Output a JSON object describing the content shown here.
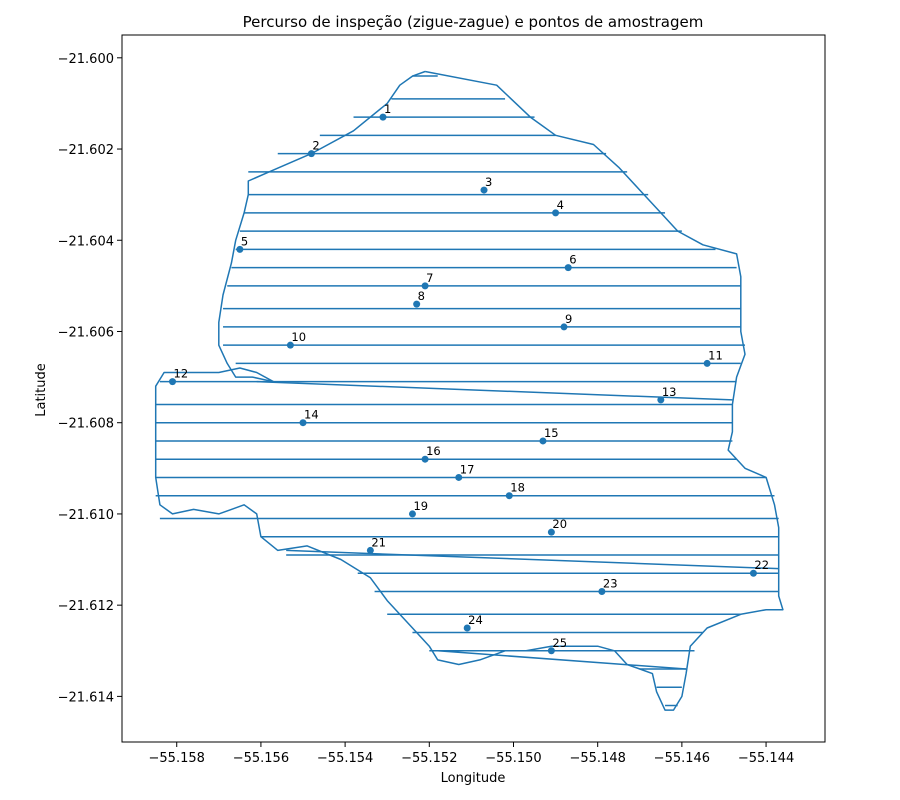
{
  "chart_data": {
    "type": "line",
    "title": "Percurso de inspeção (zigue-zague) e pontos de amostragem",
    "xlabel": "Longitude",
    "ylabel": "Latitude",
    "xlim": [
      -55.1593,
      -55.1426
    ],
    "ylim": [
      -21.615,
      -21.5995
    ],
    "grid": false,
    "line_color": "#1f77b4",
    "point_color": "#1f77b4",
    "x_ticks": [
      {
        "value": -55.158,
        "label": "−55.158"
      },
      {
        "value": -55.156,
        "label": "−55.156"
      },
      {
        "value": -55.154,
        "label": "−55.154"
      },
      {
        "value": -55.152,
        "label": "−55.152"
      },
      {
        "value": -55.15,
        "label": "−55.150"
      },
      {
        "value": -55.148,
        "label": "−55.148"
      },
      {
        "value": -55.146,
        "label": "−55.146"
      },
      {
        "value": -55.144,
        "label": "−55.144"
      }
    ],
    "y_ticks": [
      {
        "value": -21.6,
        "label": "−21.600"
      },
      {
        "value": -21.602,
        "label": "−21.602"
      },
      {
        "value": -21.604,
        "label": "−21.604"
      },
      {
        "value": -21.606,
        "label": "−21.606"
      },
      {
        "value": -21.608,
        "label": "−21.608"
      },
      {
        "value": -21.61,
        "label": "−21.610"
      },
      {
        "value": -21.612,
        "label": "−21.612"
      },
      {
        "value": -21.614,
        "label": "−21.614"
      }
    ],
    "boundary": [
      [
        -55.1521,
        -21.6003
      ],
      [
        -55.1504,
        -21.6006
      ],
      [
        -55.1496,
        -21.6013
      ],
      [
        -55.149,
        -21.6017
      ],
      [
        -55.1481,
        -21.6019
      ],
      [
        -55.1475,
        -21.6024
      ],
      [
        -55.147,
        -21.6029
      ],
      [
        -55.1466,
        -21.6033
      ],
      [
        -55.1461,
        -21.6038
      ],
      [
        -55.1455,
        -21.6041
      ],
      [
        -55.1447,
        -21.6043
      ],
      [
        -55.1446,
        -21.6048
      ],
      [
        -55.1446,
        -21.6055
      ],
      [
        -55.1446,
        -21.606
      ],
      [
        -55.1445,
        -21.6065
      ],
      [
        -55.1447,
        -21.607
      ],
      [
        -55.1448,
        -21.6076
      ],
      [
        -55.1448,
        -21.6082
      ],
      [
        -55.1449,
        -21.6086
      ],
      [
        -55.1445,
        -21.609
      ],
      [
        -55.144,
        -21.6092
      ],
      [
        -55.1438,
        -21.6098
      ],
      [
        -55.1437,
        -21.6103
      ],
      [
        -55.1437,
        -21.6108
      ],
      [
        -55.1437,
        -21.6113
      ],
      [
        -55.1437,
        -21.6118
      ],
      [
        -55.1436,
        -21.6121
      ],
      [
        -55.144,
        -21.6121
      ],
      [
        -55.1446,
        -21.6122
      ],
      [
        -55.1454,
        -21.6125
      ],
      [
        -55.1458,
        -21.6129
      ],
      [
        -55.1459,
        -21.6135
      ],
      [
        -55.146,
        -21.614
      ],
      [
        -55.1462,
        -21.6143
      ],
      [
        -55.1464,
        -21.6143
      ],
      [
        -55.1466,
        -21.6139
      ],
      [
        -55.1467,
        -21.6135
      ],
      [
        -55.147,
        -21.6134
      ],
      [
        -55.1473,
        -21.6133
      ],
      [
        -55.1476,
        -21.613
      ],
      [
        -55.148,
        -21.6129
      ],
      [
        -55.1485,
        -21.6129
      ],
      [
        -55.1491,
        -21.6129
      ],
      [
        -55.1497,
        -21.613
      ],
      [
        -55.1502,
        -21.613
      ],
      [
        -55.1508,
        -21.6132
      ],
      [
        -55.1513,
        -21.6133
      ],
      [
        -55.1518,
        -21.6132
      ],
      [
        -55.152,
        -21.6129
      ],
      [
        -55.1524,
        -21.6125
      ],
      [
        -55.153,
        -21.6119
      ],
      [
        -55.1534,
        -21.6114
      ],
      [
        -55.1541,
        -21.611
      ],
      [
        -55.1549,
        -21.6107
      ],
      [
        -55.1556,
        -21.6108
      ],
      [
        -55.156,
        -21.6105
      ],
      [
        -55.1561,
        -21.61
      ],
      [
        -55.1564,
        -21.6098
      ],
      [
        -55.1567,
        -21.6099
      ],
      [
        -55.157,
        -21.61
      ],
      [
        -55.1576,
        -21.6099
      ],
      [
        -55.1581,
        -21.61
      ],
      [
        -55.1584,
        -21.6098
      ],
      [
        -55.1585,
        -21.6092
      ],
      [
        -55.1585,
        -21.6085
      ],
      [
        -55.1585,
        -21.6078
      ],
      [
        -55.1585,
        -21.6072
      ],
      [
        -55.1583,
        -21.6069
      ],
      [
        -55.158,
        -21.6069
      ],
      [
        -55.1575,
        -21.6069
      ],
      [
        -55.157,
        -21.6069
      ],
      [
        -55.1565,
        -21.6068
      ],
      [
        -55.1561,
        -21.6069
      ],
      [
        -55.1557,
        -21.6071
      ],
      [
        -55.1562,
        -21.607
      ],
      [
        -55.1566,
        -21.607
      ],
      [
        -55.1568,
        -21.6067
      ],
      [
        -55.157,
        -21.6063
      ],
      [
        -55.157,
        -21.6058
      ],
      [
        -55.1569,
        -21.6052
      ],
      [
        -55.1567,
        -21.6045
      ],
      [
        -55.1566,
        -21.604
      ],
      [
        -55.1564,
        -21.6034
      ],
      [
        -55.1563,
        -21.603
      ],
      [
        -55.1563,
        -21.6027
      ],
      [
        -55.1558,
        -21.6025
      ],
      [
        -55.1548,
        -21.6021
      ],
      [
        -55.1538,
        -21.6016
      ],
      [
        -55.153,
        -21.601
      ],
      [
        -55.1527,
        -21.6006
      ],
      [
        -55.1524,
        -21.6004
      ],
      [
        -55.1521,
        -21.6003
      ]
    ],
    "sweep_lines": [
      {
        "y": -21.6004,
        "x_min": -55.1524,
        "x_max": -55.1518
      },
      {
        "y": -21.6009,
        "x_min": -55.1529,
        "x_max": -55.1502
      },
      {
        "y": -21.6013,
        "x_min": -55.1538,
        "x_max": -55.1495
      },
      {
        "y": -21.6017,
        "x_min": -55.1546,
        "x_max": -55.149
      },
      {
        "y": -21.6021,
        "x_min": -55.1556,
        "x_max": -55.1478
      },
      {
        "y": -21.6025,
        "x_min": -55.1563,
        "x_max": -55.1473
      },
      {
        "y": -21.603,
        "x_min": -55.1563,
        "x_max": -55.1468
      },
      {
        "y": -21.6034,
        "x_min": -55.1564,
        "x_max": -55.1464
      },
      {
        "y": -21.6038,
        "x_min": -55.1565,
        "x_max": -55.146
      },
      {
        "y": -21.6042,
        "x_min": -55.1566,
        "x_max": -55.1452
      },
      {
        "y": -21.6046,
        "x_min": -55.1567,
        "x_max": -55.1447
      },
      {
        "y": -21.605,
        "x_min": -55.1568,
        "x_max": -55.1446
      },
      {
        "y": -21.6055,
        "x_min": -55.1569,
        "x_max": -55.1446
      },
      {
        "y": -21.6059,
        "x_min": -55.1569,
        "x_max": -55.1446
      },
      {
        "y": -21.6063,
        "x_min": -55.1569,
        "x_max": -55.1445
      },
      {
        "y": -21.6067,
        "x_min": -55.1566,
        "x_max": -55.1446
      },
      {
        "y": -21.6071,
        "x_min": -55.1584,
        "x_max": -55.1447
      },
      {
        "y": -21.6076,
        "x_min": -55.1585,
        "x_max": -55.1448
      },
      {
        "y": -21.608,
        "x_min": -55.1585,
        "x_max": -55.1448
      },
      {
        "y": -21.6084,
        "x_min": -55.1585,
        "x_max": -55.1448
      },
      {
        "y": -21.6088,
        "x_min": -55.1585,
        "x_max": -55.1447
      },
      {
        "y": -21.6092,
        "x_min": -55.1585,
        "x_max": -55.144
      },
      {
        "y": -21.6096,
        "x_min": -55.1585,
        "x_max": -55.1438
      },
      {
        "y": -21.6101,
        "x_min": -55.1584,
        "x_max": -55.1437
      },
      {
        "y": -21.6105,
        "x_min": -55.156,
        "x_max": -55.1437
      },
      {
        "y": -21.6109,
        "x_min": -55.1554,
        "x_max": -55.1437
      },
      {
        "y": -21.6113,
        "x_min": -55.1537,
        "x_max": -55.1437
      },
      {
        "y": -21.6117,
        "x_min": -55.1533,
        "x_max": -55.1437
      },
      {
        "y": -21.6122,
        "x_min": -55.153,
        "x_max": -55.1446
      },
      {
        "y": -21.6126,
        "x_min": -55.1524,
        "x_max": -55.1455
      },
      {
        "y": -21.613,
        "x_min": -55.152,
        "x_max": -55.1457
      },
      {
        "y": -21.6134,
        "x_min": -55.147,
        "x_max": -55.1459
      },
      {
        "y": -21.6138,
        "x_min": -55.1466,
        "x_max": -55.146
      },
      {
        "y": -21.6142,
        "x_min": -55.1464,
        "x_max": -55.1461
      }
    ],
    "extra_segments": [
      [
        [
          -55.1561,
          -21.6071
        ],
        [
          -55.1448,
          -21.6075
        ]
      ],
      [
        [
          -55.1554,
          -21.6108
        ],
        [
          -55.1437,
          -21.6112
        ]
      ],
      [
        [
          -55.1518,
          -21.613
        ],
        [
          -55.1459,
          -21.6134
        ]
      ]
    ],
    "points": [
      {
        "label": "1",
        "x": -55.1531,
        "y": -21.6013
      },
      {
        "label": "2",
        "x": -55.1548,
        "y": -21.6021
      },
      {
        "label": "3",
        "x": -55.1507,
        "y": -21.6029
      },
      {
        "label": "4",
        "x": -55.149,
        "y": -21.6034
      },
      {
        "label": "5",
        "x": -55.1565,
        "y": -21.6042
      },
      {
        "label": "6",
        "x": -55.1487,
        "y": -21.6046
      },
      {
        "label": "7",
        "x": -55.1521,
        "y": -21.605
      },
      {
        "label": "8",
        "x": -55.1523,
        "y": -21.6054
      },
      {
        "label": "9",
        "x": -55.1488,
        "y": -21.6059
      },
      {
        "label": "10",
        "x": -55.1553,
        "y": -21.6063
      },
      {
        "label": "11",
        "x": -55.1454,
        "y": -21.6067
      },
      {
        "label": "12",
        "x": -55.1581,
        "y": -21.6071
      },
      {
        "label": "13",
        "x": -55.1465,
        "y": -21.6075
      },
      {
        "label": "14",
        "x": -55.155,
        "y": -21.608
      },
      {
        "label": "15",
        "x": -55.1493,
        "y": -21.6084
      },
      {
        "label": "16",
        "x": -55.1521,
        "y": -21.6088
      },
      {
        "label": "17",
        "x": -55.1513,
        "y": -21.6092
      },
      {
        "label": "18",
        "x": -55.1501,
        "y": -21.6096
      },
      {
        "label": "19",
        "x": -55.1524,
        "y": -21.61
      },
      {
        "label": "20",
        "x": -55.1491,
        "y": -21.6104
      },
      {
        "label": "21",
        "x": -55.1534,
        "y": -21.6108
      },
      {
        "label": "22",
        "x": -55.1443,
        "y": -21.6113
      },
      {
        "label": "23",
        "x": -55.1479,
        "y": -21.6117
      },
      {
        "label": "24",
        "x": -55.1511,
        "y": -21.6125
      },
      {
        "label": "25",
        "x": -55.1491,
        "y": -21.613
      }
    ]
  }
}
